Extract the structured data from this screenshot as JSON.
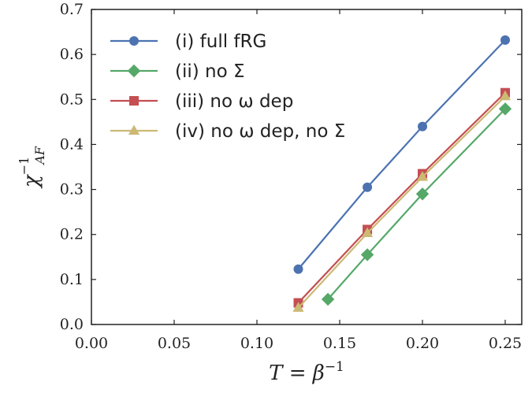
{
  "chart_data": {
    "type": "line",
    "title": "",
    "xlabel": "T = β",
    "xlabel_sup": "−1",
    "ylabel": "χ",
    "ylabel_sup": "−1",
    "ylabel_sub": "AF",
    "xlim": [
      0.0,
      0.26
    ],
    "ylim": [
      0.0,
      0.7
    ],
    "xticks": [
      "0.00",
      "0.05",
      "0.10",
      "0.15",
      "0.20",
      "0.25"
    ],
    "yticks": [
      "0.0",
      "0.1",
      "0.2",
      "0.3",
      "0.4",
      "0.5",
      "0.6",
      "0.7"
    ],
    "grid": false,
    "legend_position": "top-left",
    "series": [
      {
        "name": "(i) full fRG",
        "color": "#4c72b0",
        "marker": "circle",
        "x": [
          0.125,
          0.1667,
          0.2,
          0.25
        ],
        "y": [
          0.123,
          0.305,
          0.44,
          0.632
        ]
      },
      {
        "name": "(ii) no Σ",
        "color": "#55a868",
        "marker": "diamond",
        "x": [
          0.1429,
          0.1667,
          0.2,
          0.25
        ],
        "y": [
          0.056,
          0.155,
          0.29,
          0.479
        ]
      },
      {
        "name": "(iii) no ω dep",
        "color": "#c44e52",
        "marker": "square",
        "x": [
          0.125,
          0.1667,
          0.2,
          0.25
        ],
        "y": [
          0.048,
          0.211,
          0.335,
          0.515
        ]
      },
      {
        "name": "(iv) no ω dep, no Σ",
        "color": "#ccb974",
        "marker": "triangle",
        "x": [
          0.125,
          0.1667,
          0.2,
          0.25
        ],
        "y": [
          0.037,
          0.203,
          0.328,
          0.507
        ]
      }
    ]
  }
}
